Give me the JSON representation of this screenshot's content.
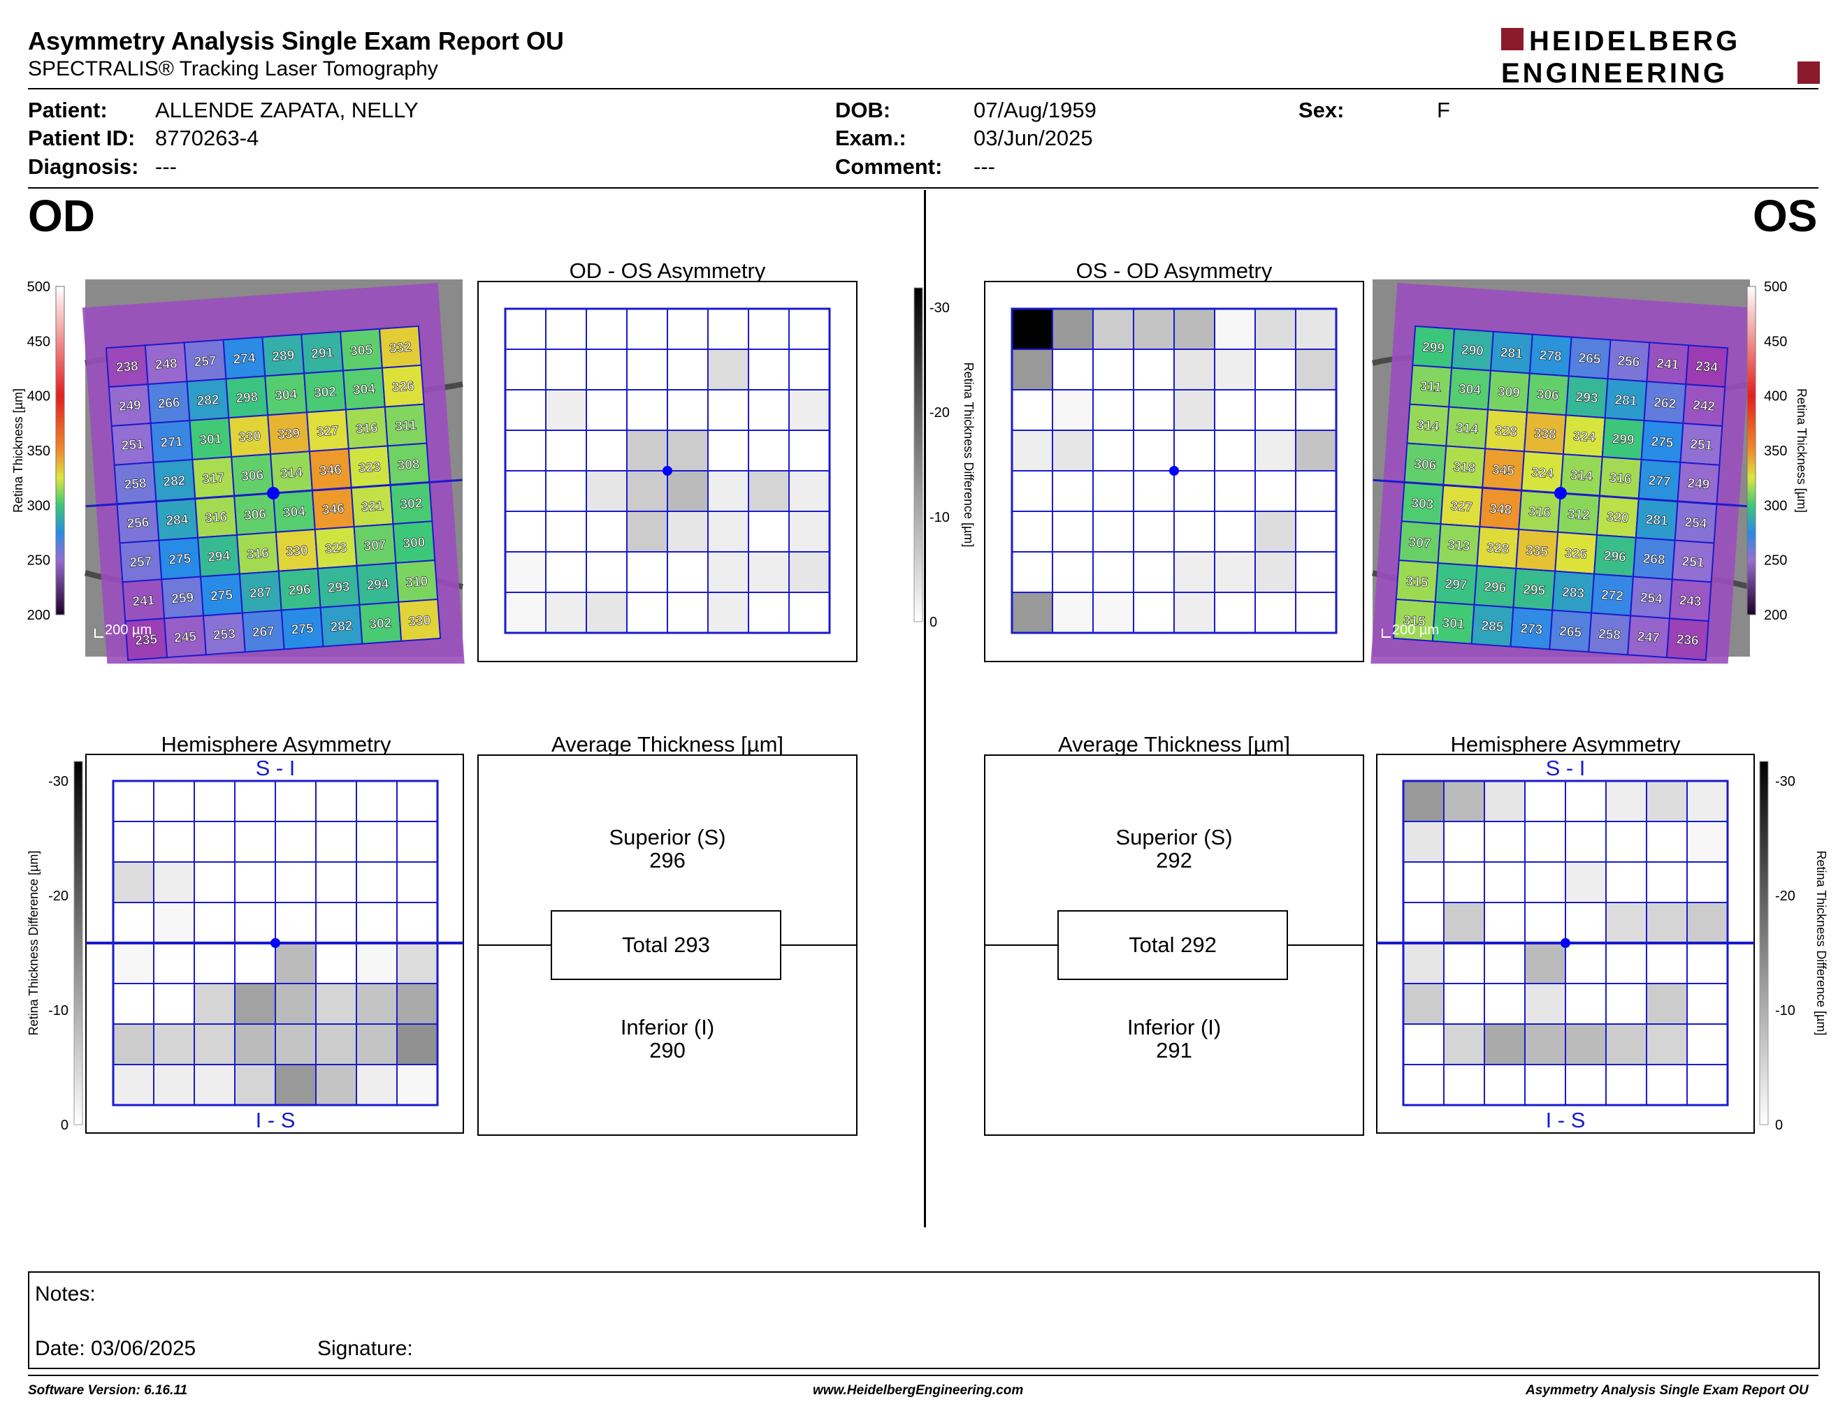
{
  "header": {
    "title": "Asymmetry Analysis Single Exam Report OU",
    "subtitle": "SPECTRALIS® Tracking Laser Tomography",
    "logo_line1": "HEIDELBERG",
    "logo_line2": "ENGINEERING"
  },
  "patient": {
    "patient_label": "Patient:",
    "patient_value": "ALLENDE ZAPATA, NELLY",
    "id_label": "Patient ID:",
    "id_value": "8770263-4",
    "diagnosis_label": "Diagnosis:",
    "diagnosis_value": "---",
    "dob_label": "DOB:",
    "dob_value": "07/Aug/1959",
    "exam_label": "Exam.:",
    "exam_value": "03/Jun/2025",
    "comment_label": "Comment:",
    "comment_value": "---",
    "sex_label": "Sex:",
    "sex_value": "F"
  },
  "od": {
    "eye_label": "OD",
    "asym_title": "OD - OS Asymmetry",
    "hemi_title": "Hemisphere Asymmetry",
    "avg_title": "Average Thickness [µm]",
    "scale_bar": "200 µm",
    "thickness_grid": [
      [
        238,
        248,
        257,
        274,
        289,
        291,
        305,
        332
      ],
      [
        249,
        266,
        282,
        298,
        304,
        302,
        304,
        326
      ],
      [
        251,
        271,
        301,
        330,
        339,
        327,
        316,
        311
      ],
      [
        258,
        282,
        317,
        306,
        314,
        346,
        323,
        308
      ],
      [
        256,
        284,
        316,
        306,
        304,
        346,
        321,
        302
      ],
      [
        257,
        275,
        294,
        316,
        330,
        323,
        307,
        300
      ],
      [
        241,
        259,
        275,
        287,
        296,
        293,
        294,
        310
      ],
      [
        235,
        245,
        253,
        267,
        275,
        282,
        302,
        330
      ]
    ],
    "asym_grid": [
      [
        0,
        0,
        0,
        0,
        0,
        0,
        0,
        0
      ],
      [
        0,
        0,
        0,
        0,
        0,
        4,
        0,
        0
      ],
      [
        0,
        2,
        0,
        0,
        0,
        0,
        0,
        2
      ],
      [
        0,
        0,
        0,
        6,
        6,
        0,
        0,
        0
      ],
      [
        0,
        0,
        3,
        6,
        8,
        2,
        5,
        2
      ],
      [
        0,
        0,
        0,
        6,
        3,
        2,
        0,
        2
      ],
      [
        1,
        0,
        0,
        0,
        0,
        2,
        2,
        3
      ],
      [
        1,
        2,
        3,
        0,
        0,
        2,
        0,
        0
      ]
    ],
    "hemi_grid": [
      [
        0,
        0,
        0,
        0,
        0,
        0,
        0,
        0
      ],
      [
        0,
        0,
        0,
        0,
        0,
        0,
        0,
        0
      ],
      [
        4,
        2,
        0,
        0,
        0,
        0,
        0,
        0
      ],
      [
        0,
        1,
        0,
        0,
        0,
        0,
        0,
        0
      ],
      [
        1,
        0,
        0,
        0,
        8,
        0,
        1,
        4
      ],
      [
        0,
        0,
        5,
        11,
        8,
        5,
        7,
        10
      ],
      [
        6,
        5,
        5,
        8,
        7,
        6,
        7,
        13
      ],
      [
        2,
        2,
        2,
        5,
        12,
        7,
        2,
        1
      ]
    ],
    "hemi_top": "S - I",
    "hemi_bottom": "I - S",
    "superior_label": "Superior (S)",
    "superior_value": "296",
    "total_label": "Total 293",
    "inferior_label": "Inferior (I)",
    "inferior_value": "290"
  },
  "os": {
    "eye_label": "OS",
    "asym_title": "OS - OD Asymmetry",
    "hemi_title": "Hemisphere Asymmetry",
    "avg_title": "Average Thickness [µm]",
    "scale_bar": "200 µm",
    "thickness_grid": [
      [
        299,
        290,
        281,
        278,
        265,
        256,
        241,
        234
      ],
      [
        311,
        304,
        309,
        306,
        293,
        281,
        262,
        242
      ],
      [
        314,
        314,
        328,
        338,
        324,
        299,
        275,
        251
      ],
      [
        306,
        318,
        345,
        324,
        314,
        316,
        277,
        249
      ],
      [
        303,
        327,
        348,
        316,
        312,
        320,
        281,
        254
      ],
      [
        307,
        313,
        328,
        335,
        326,
        296,
        268,
        251
      ],
      [
        315,
        297,
        296,
        295,
        283,
        272,
        254,
        243
      ],
      [
        315,
        301,
        285,
        273,
        265,
        258,
        247,
        236
      ]
    ],
    "asym_grid": [
      [
        30,
        12,
        6,
        7,
        8,
        1,
        4,
        3
      ],
      [
        12,
        0,
        0,
        0,
        3,
        2,
        0,
        5
      ],
      [
        0,
        1,
        0,
        0,
        3,
        0,
        0,
        0
      ],
      [
        2,
        3,
        0,
        0,
        0,
        0,
        2,
        7
      ],
      [
        0,
        0,
        0,
        0,
        0,
        0,
        0,
        0
      ],
      [
        0,
        0,
        0,
        0,
        0,
        0,
        4,
        0
      ],
      [
        0,
        0,
        0,
        0,
        2,
        2,
        3,
        0
      ],
      [
        12,
        1,
        1,
        0,
        2,
        0,
        0,
        0
      ]
    ],
    "hemi_grid": [
      [
        12,
        8,
        3,
        0,
        0,
        2,
        4,
        2
      ],
      [
        3,
        0,
        0,
        0,
        0,
        0,
        0,
        1
      ],
      [
        0,
        0,
        0,
        0,
        2,
        0,
        0,
        0
      ],
      [
        0,
        6,
        0,
        0,
        0,
        4,
        5,
        6
      ],
      [
        3,
        0,
        0,
        8,
        0,
        0,
        0,
        0
      ],
      [
        6,
        0,
        0,
        3,
        0,
        0,
        6,
        0
      ],
      [
        0,
        5,
        10,
        8,
        8,
        6,
        5,
        0
      ],
      [
        0,
        0,
        0,
        0,
        0,
        0,
        0,
        0
      ]
    ],
    "hemi_top": "S - I",
    "hemi_bottom": "I - S",
    "superior_label": "Superior (S)",
    "superior_value": "292",
    "total_label": "Total 292",
    "inferior_label": "Inferior (I)",
    "inferior_value": "291"
  },
  "scales": {
    "thickness_axis_label": "Retina  Thickness [µm]",
    "thickness_ticks": [
      "500",
      "450",
      "400",
      "350",
      "300",
      "250",
      "200"
    ],
    "diff_axis_label": "Retina Thickness Difference [µm]",
    "diff_ticks": [
      "-30",
      "-20",
      "-10",
      "0"
    ]
  },
  "notes": {
    "notes_label": "Notes:",
    "date_label": "Date: 03/06/2025",
    "signature_label": "Signature:"
  },
  "footer": {
    "software": "Software Version: 6.16.11",
    "url": "www.HeidelbergEngineering.com",
    "report": "Asymmetry Analysis Single Exam Report OU"
  },
  "colors": {
    "grid_blue": "#1a1acc",
    "logo_red": "#8b1a2b",
    "fovea_dot": "#0000ff"
  }
}
